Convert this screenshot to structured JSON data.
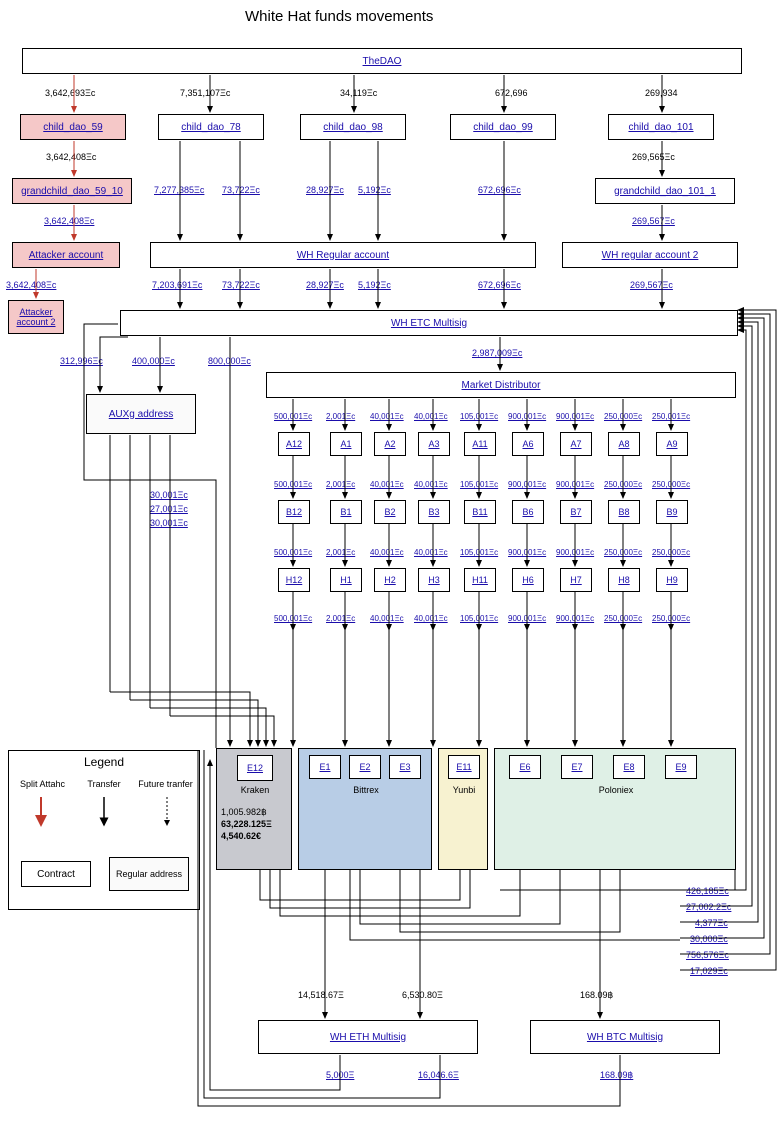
{
  "title": "White Hat funds movements",
  "colors": {
    "link": "#1a0dab",
    "pink": "#f5c8c8",
    "blue": "#b8cde6",
    "cream": "#f7f2d0",
    "mint": "#dff0e6",
    "attackArrow": "#c0392b",
    "arrow": "#000"
  },
  "nodes": {
    "thedao": "TheDAO",
    "cd59": "child_dao_59",
    "cd78": "child_dao_78",
    "cd98": "child_dao_98",
    "cd99": "child_dao_99",
    "cd101": "child_dao_101",
    "gc59": "grandchild_dao_59_10",
    "gc101": "grandchild_dao_101_1",
    "atk1": "Attacker account",
    "atk2": "Attacker account 2",
    "whreg": "WH Regular account",
    "whreg2": "WH regular account 2",
    "whetc": "WH ETC Multisig",
    "auxg": "AUXg address",
    "mkt": "Market Distributor",
    "wheth": "WH ETH Multisig",
    "whbtc": "WH BTC Multisig"
  },
  "edgesTop": {
    "e1": "3,642,693Ξc",
    "e2": "7,351,107Ξc",
    "e3": "34,119Ξc",
    "e4": "672,696",
    "e5": "269,934",
    "g1": "3,642,408Ξc",
    "g2": "269,565Ξc",
    "w1": "7,277,385Ξc",
    "w2": "73,722Ξc",
    "w3": "28,927Ξc",
    "w4": "5,192Ξc",
    "w5": "672,696Ξc",
    "w6": "269,567Ξc",
    "m1": "7,203,691Ξc",
    "m2": "73,722Ξc",
    "m3": "28,927Ξc",
    "m4": "5,192Ξc",
    "m5": "672,696Ξc",
    "m6": "269,567Ξc",
    "a1": "3,642,408Ξc",
    "a2": "3,642,408Ξc",
    "aux1": "312,996Ξc",
    "aux2": "400,000Ξc",
    "aux3": "800,000Ξc",
    "mkto": "2,987,009Ξc",
    "sx1": "30,001Ξc",
    "sx2": "27,001Ξc",
    "sx3": "30,001Ξc"
  },
  "marketVals": {
    "cols": [
      "500,001Ξc",
      "2,001Ξc",
      "40,001Ξc",
      "40,001Ξc",
      "105,001Ξc",
      "900,001Ξc",
      "900,001Ξc",
      "250,000Ξc",
      "250,001Ξc"
    ],
    "colsB": [
      "500,001Ξc",
      "2,001Ξc",
      "40,001Ξc",
      "40,001Ξc",
      "105,001Ξc",
      "900,001Ξc",
      "900,001Ξc",
      "250,000Ξc",
      "250,000Ξc"
    ],
    "colsH": [
      "500,001Ξc",
      "2,001Ξc",
      "40,001Ξc",
      "40,001Ξc",
      "105,001Ξc",
      "900,001Ξc",
      "900,001Ξc",
      "250,000Ξc",
      "250,000Ξc"
    ],
    "colsOut": [
      "500,001Ξc",
      "2,001Ξc",
      "40,001Ξc",
      "40,001Ξc",
      "105,001Ξc",
      "900,001Ξc",
      "900,001Ξc",
      "250,000Ξc",
      "250,000Ξc"
    ],
    "rowA": [
      "A12",
      "A1",
      "A2",
      "A3",
      "A11",
      "A6",
      "A7",
      "A8",
      "A9"
    ],
    "rowB": [
      "B12",
      "B1",
      "B2",
      "B3",
      "B11",
      "B6",
      "B7",
      "B8",
      "B9"
    ],
    "rowH": [
      "H12",
      "H1",
      "H2",
      "H3",
      "H11",
      "H6",
      "H7",
      "H8",
      "H9"
    ],
    "rowE": [
      "E12",
      "E1",
      "E2",
      "E3",
      "E11",
      "E6",
      "E7",
      "E8",
      "E9"
    ]
  },
  "exchanges": {
    "kraken": "Kraken",
    "bittrex": "Bittrex",
    "yunbi": "Yunbi",
    "poloniex": "Poloniex"
  },
  "krakenStats": {
    "l1": "1,005.982฿",
    "l2": "63,228.125Ξ",
    "l3": "4,540.62€"
  },
  "bottom": {
    "v1": "14,518.67Ξ",
    "v2": "6,530.80Ξ",
    "v3": "168.09฿",
    "r1": "426,185Ξc",
    "r2": "27,002.2Ξc",
    "r3": "4,377Ξc",
    "r4": "30,000Ξc",
    "r5": "756,576Ξc",
    "r6": "17,029Ξc",
    "o1": "5,000Ξ",
    "o2": "16,046.6Ξ",
    "o3": "168.09฿"
  },
  "legend": {
    "title": "Legend",
    "l1": "Split Attahc",
    "l2": "Transfer",
    "l3": "Future tranfer",
    "b1": "Contract",
    "b2": "Regular address"
  }
}
